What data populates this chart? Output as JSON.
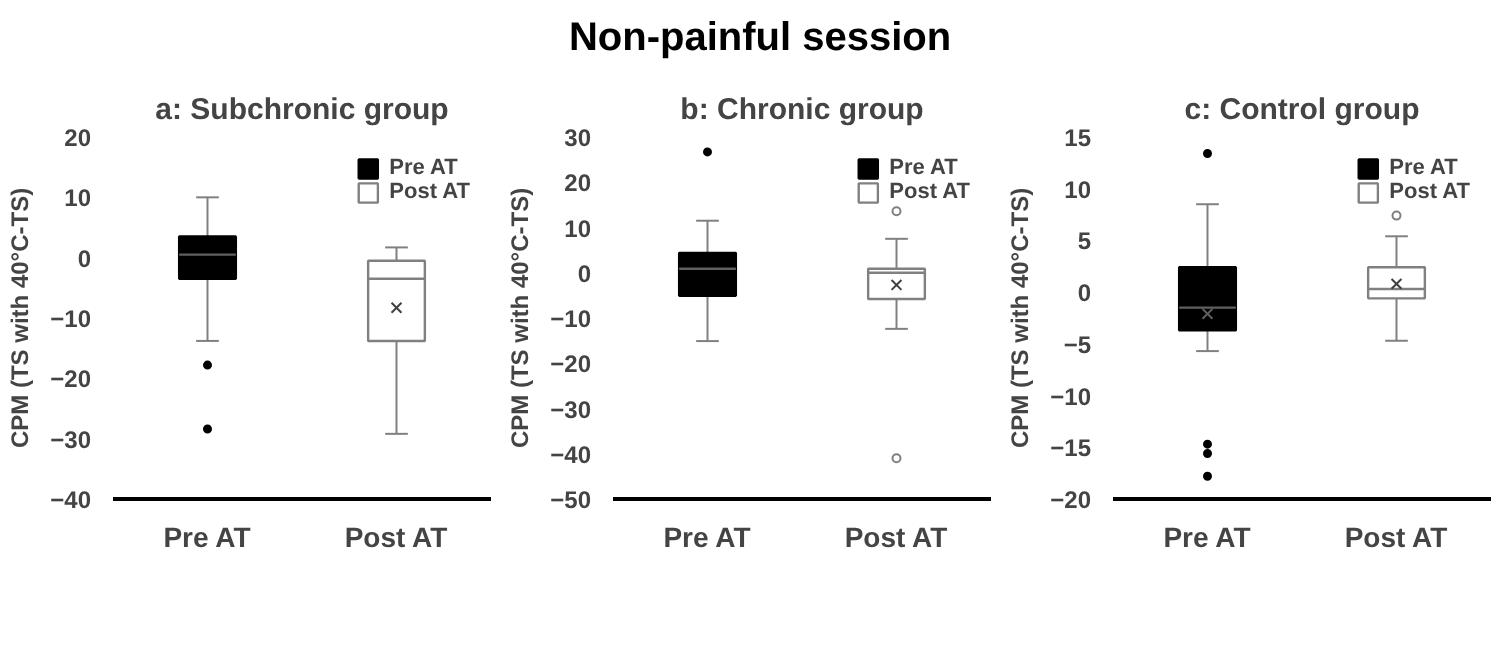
{
  "chart_data": [
    {
      "type": "box",
      "title": "a: Subchronic group",
      "ylabel": "CPM (TS with 40°C-TS)",
      "categories": [
        "Pre AT",
        "Post AT"
      ],
      "ylim": [
        -40,
        20
      ],
      "yticks": [
        -40,
        -30,
        -20,
        -10,
        0,
        10,
        20
      ],
      "legend": "top right",
      "annotations": [
        "Non-painful session"
      ],
      "series": [
        {
          "name": "Pre AT",
          "color": "#000000",
          "boxes": [
            {
              "low": -13.8,
              "q1": -3.5,
              "median": 0.5,
              "q3": 3.5,
              "high": 10,
              "outliers": [
                -17.8,
                -28.4
              ]
            },
            null
          ]
        },
        {
          "name": "Post AT",
          "color": "#ffffff",
          "boxes": [
            null,
            {
              "low": -29.2,
              "q1": -13.8,
              "median": -3.5,
              "q3": -0.5,
              "high": 1.7,
              "mean": -8.3
            }
          ]
        }
      ]
    },
    {
      "type": "box",
      "title": "b: Chronic group",
      "ylabel": "CPM (TS with 40°C-TS)",
      "categories": [
        "Pre AT",
        "Post AT"
      ],
      "ylim": [
        -50,
        30
      ],
      "yticks": [
        -50,
        -40,
        -30,
        -20,
        -10,
        0,
        10,
        20,
        30
      ],
      "legend": "top right",
      "series": [
        {
          "name": "Pre AT",
          "color": "#000000",
          "boxes": [
            {
              "low": -15.1,
              "q1": -5.1,
              "median": 0.9,
              "q3": 4.4,
              "high": 11.5,
              "outliers": [
                26.7
              ]
            },
            null
          ]
        },
        {
          "name": "Post AT",
          "color": "#ffffff",
          "boxes": [
            null,
            {
              "low": -12.4,
              "q1": -5.8,
              "median": 0,
              "q3": 0.9,
              "high": 7.5,
              "mean": -2.7,
              "outliers": [
                13.6,
                -41
              ]
            }
          ]
        }
      ]
    },
    {
      "type": "box",
      "title": "c: Control group",
      "ylabel": "CPM (TS with 40°C-TS)",
      "categories": [
        "Pre AT",
        "Post AT"
      ],
      "ylim": [
        -20,
        15
      ],
      "yticks": [
        -20,
        -15,
        -10,
        -5,
        0,
        5,
        10,
        15
      ],
      "legend": "top right",
      "series": [
        {
          "name": "Pre AT",
          "color": "#000000",
          "boxes": [
            {
              "low": -5.7,
              "q1": -3.7,
              "median": -1.5,
              "q3": 2.4,
              "high": 8.5,
              "mean": -2.1,
              "outliers": [
                13.4,
                -14.7,
                -15.6,
                -17.8
              ]
            },
            null
          ]
        },
        {
          "name": "Post AT",
          "color": "#ffffff",
          "boxes": [
            null,
            {
              "low": -4.7,
              "q1": -0.6,
              "median": 0.3,
              "q3": 2.4,
              "high": 5.4,
              "mean": 0.8,
              "outliers": [
                7.4
              ]
            }
          ]
        }
      ]
    }
  ]
}
